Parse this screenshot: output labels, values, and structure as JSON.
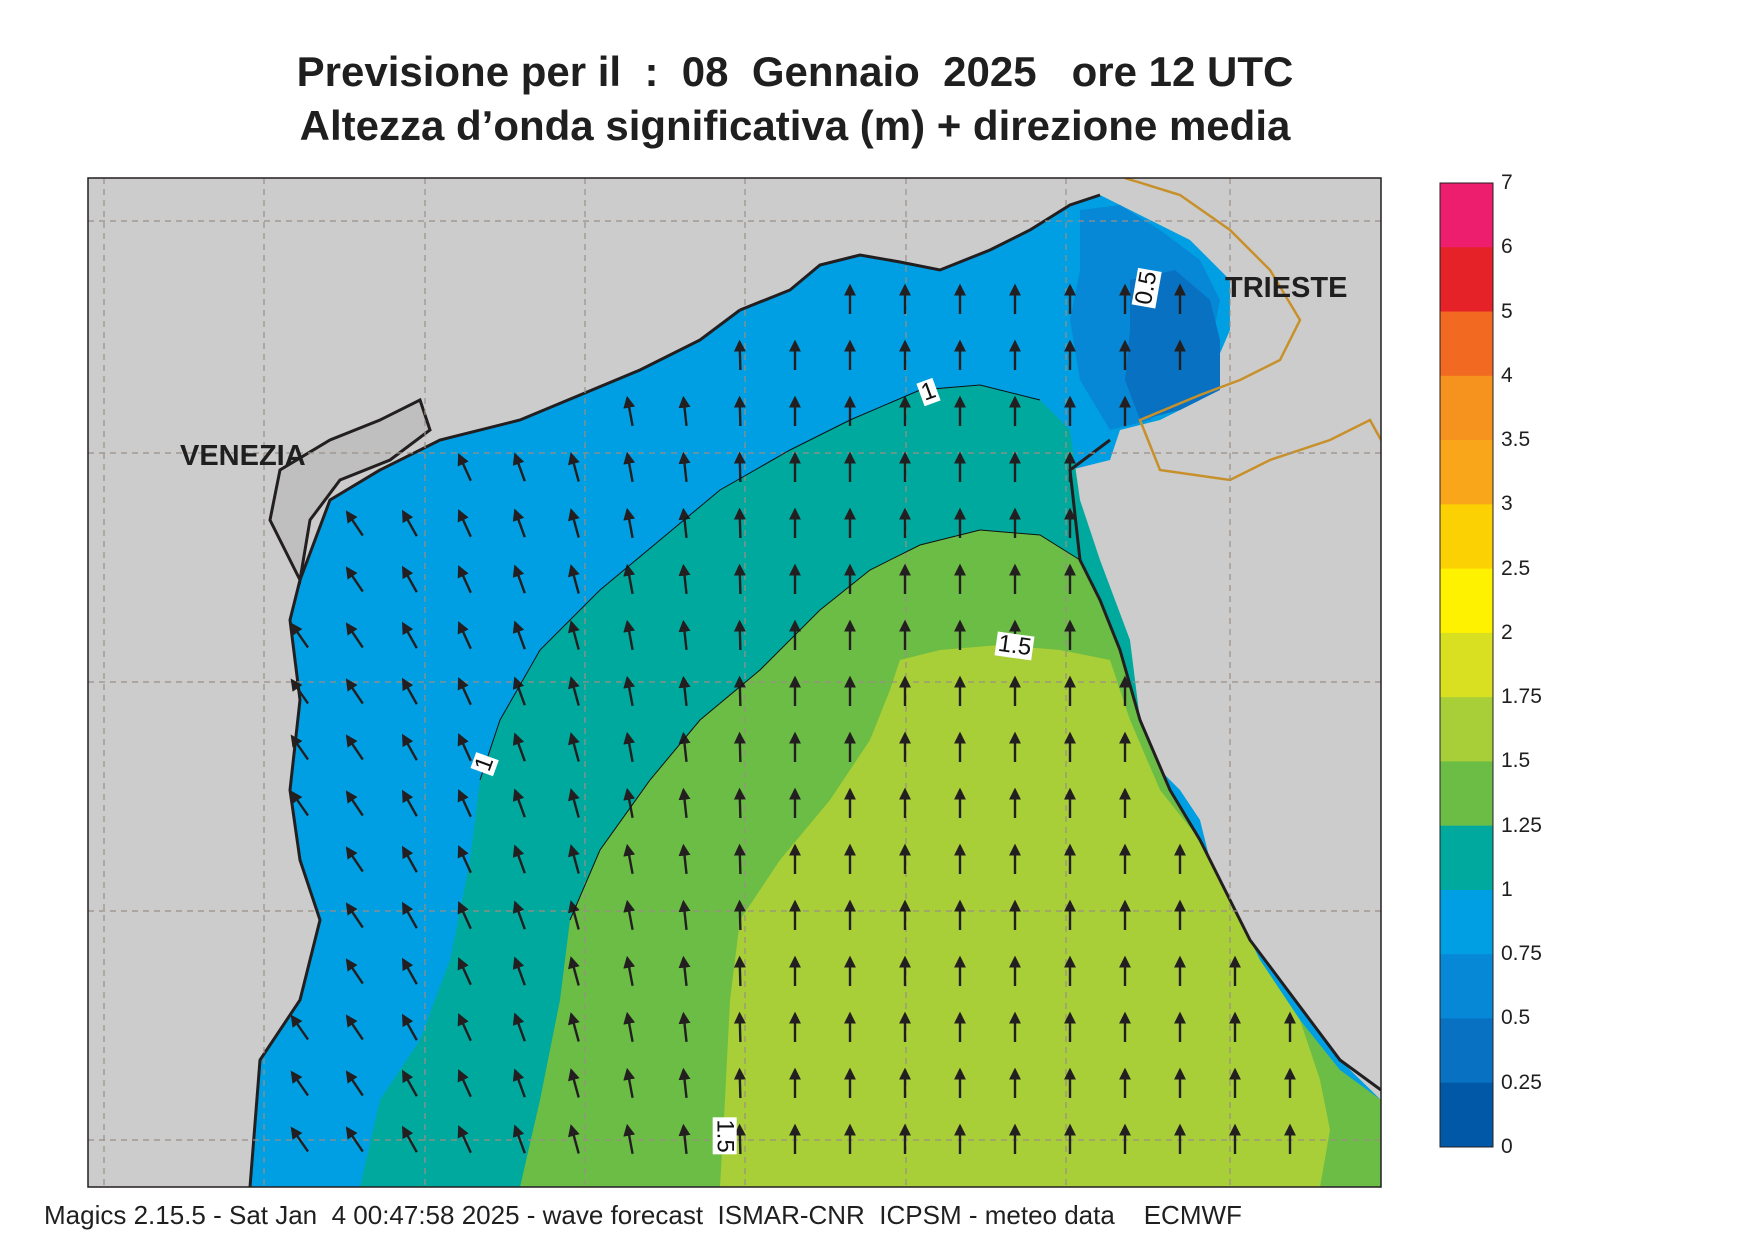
{
  "header": {
    "title_line_1": "Previsione per il  :  08  Gennaio  2025   ore 12 UTC",
    "title_line_2": "Altezza d’onda significativa (m) + direzione media"
  },
  "map": {
    "place_labels": {
      "venezia": "VENEZIA",
      "trieste": "TRIESTE"
    },
    "contour_labels": [
      "0.5",
      "1",
      "1.5",
      "1",
      "1.5"
    ],
    "arrow_direction": "north / north-west"
  },
  "colorbar": {
    "title": "",
    "levels": [
      "7",
      "6",
      "5",
      "4",
      "3.5",
      "3",
      "2.5",
      "2",
      "1.75",
      "1.5",
      "1.25",
      "1",
      "0.75",
      "0.5",
      "0.25",
      "0"
    ],
    "colors": [
      "#ee1e6e",
      "#e52228",
      "#f26a21",
      "#f6921e",
      "#faa61a",
      "#fcd104",
      "#fff200",
      "#d9e021",
      "#a8cf38",
      "#6cbd45",
      "#00a99d",
      "#009fe3",
      "#0788d6",
      "#0871c2",
      "#0058a6"
    ]
  },
  "colors": {
    "land": "#cccccc",
    "coast": "#231f20",
    "border": "#c8902a",
    "grid": "#9a8f86"
  },
  "footer": {
    "credit": "Magics 2.15.5 - Sat Jan  4 00:47:58 2025 - wave forecast  ISMAR-CNR  ICPSM - meteo data    ECMWF"
  }
}
